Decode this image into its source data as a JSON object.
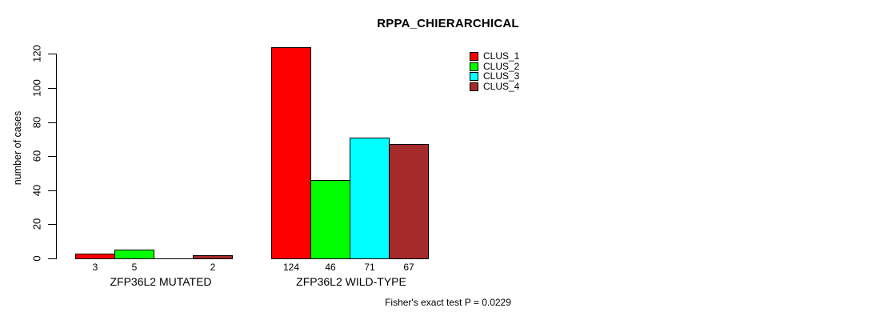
{
  "title": "RPPA_CHIERARCHICAL",
  "footer": "Fisher's exact test P = 0.0229",
  "chart_data": {
    "type": "bar",
    "title": "RPPA_CHIERARCHICAL",
    "xlabel": "",
    "ylabel": "number of cases",
    "ylim": [
      0,
      120
    ],
    "yticks": [
      0,
      20,
      40,
      60,
      80,
      100,
      120
    ],
    "grid": false,
    "legend_position": "top-right",
    "categories": [
      "ZFP36L2 MUTATED",
      "ZFP36L2 WILD-TYPE"
    ],
    "series": [
      {
        "name": "CLUS_1",
        "color": "#ff0000",
        "values": [
          3,
          124
        ]
      },
      {
        "name": "CLUS_2",
        "color": "#00ff00",
        "values": [
          5,
          46
        ]
      },
      {
        "name": "CLUS_3",
        "color": "#00ffff",
        "values": [
          0,
          71
        ]
      },
      {
        "name": "CLUS_4",
        "color": "#a52a2a",
        "values": [
          2,
          67
        ]
      }
    ],
    "bar_labels": [
      [
        "3",
        "5",
        "",
        "2"
      ],
      [
        "124",
        "46",
        "71",
        "67"
      ]
    ],
    "annotation": "Fisher's exact test P = 0.0229"
  }
}
